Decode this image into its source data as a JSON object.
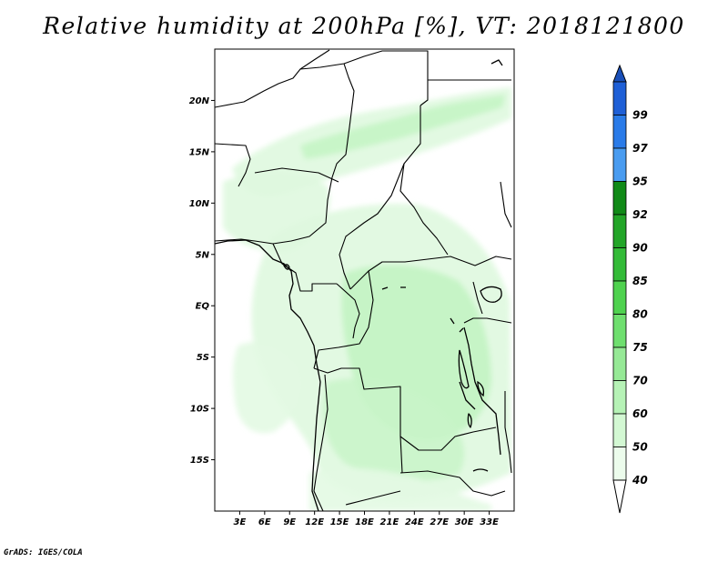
{
  "title": "Relative humidity at 200hPa [%], VT: 2018121800",
  "credit": "GrADS: IGES/COLA",
  "map": {
    "lon_range": [
      0,
      36
    ],
    "lat_range": [
      -20,
      25
    ],
    "lat_ticks": [
      {
        "value": 20,
        "label": "20N"
      },
      {
        "value": 15,
        "label": "15N"
      },
      {
        "value": 10,
        "label": "10N"
      },
      {
        "value": 5,
        "label": "5N"
      },
      {
        "value": 0,
        "label": "EQ"
      },
      {
        "value": -5,
        "label": "5S"
      },
      {
        "value": -10,
        "label": "10S"
      },
      {
        "value": -15,
        "label": "15S"
      }
    ],
    "lon_ticks": [
      {
        "value": 3,
        "label": "3E"
      },
      {
        "value": 6,
        "label": "6E"
      },
      {
        "value": 9,
        "label": "9E"
      },
      {
        "value": 12,
        "label": "12E"
      },
      {
        "value": 15,
        "label": "15E"
      },
      {
        "value": 18,
        "label": "18E"
      },
      {
        "value": 21,
        "label": "21E"
      },
      {
        "value": 24,
        "label": "24E"
      },
      {
        "value": 27,
        "label": "27E"
      },
      {
        "value": 30,
        "label": "30E"
      },
      {
        "value": 33,
        "label": "33E"
      }
    ]
  },
  "colorbar": {
    "levels": [
      {
        "label": "99",
        "color": "#1e5fd6"
      },
      {
        "label": "97",
        "color": "#2a7be8"
      },
      {
        "label": "95",
        "color": "#4a9cf0"
      },
      {
        "label": "92",
        "color": "#118a18"
      },
      {
        "label": "90",
        "color": "#23a528"
      },
      {
        "label": "85",
        "color": "#34bb38"
      },
      {
        "label": "80",
        "color": "#4fd24f"
      },
      {
        "label": "75",
        "color": "#6fdf6f"
      },
      {
        "label": "70",
        "color": "#96e996"
      },
      {
        "label": "60",
        "color": "#b6f2b6"
      },
      {
        "label": "50",
        "color": "#d3f8d3"
      },
      {
        "label": "40",
        "color": "#ecfcec"
      }
    ],
    "top_arrow_color": "#1a4fb8",
    "bottom_arrow_color": "#ffffff"
  }
}
